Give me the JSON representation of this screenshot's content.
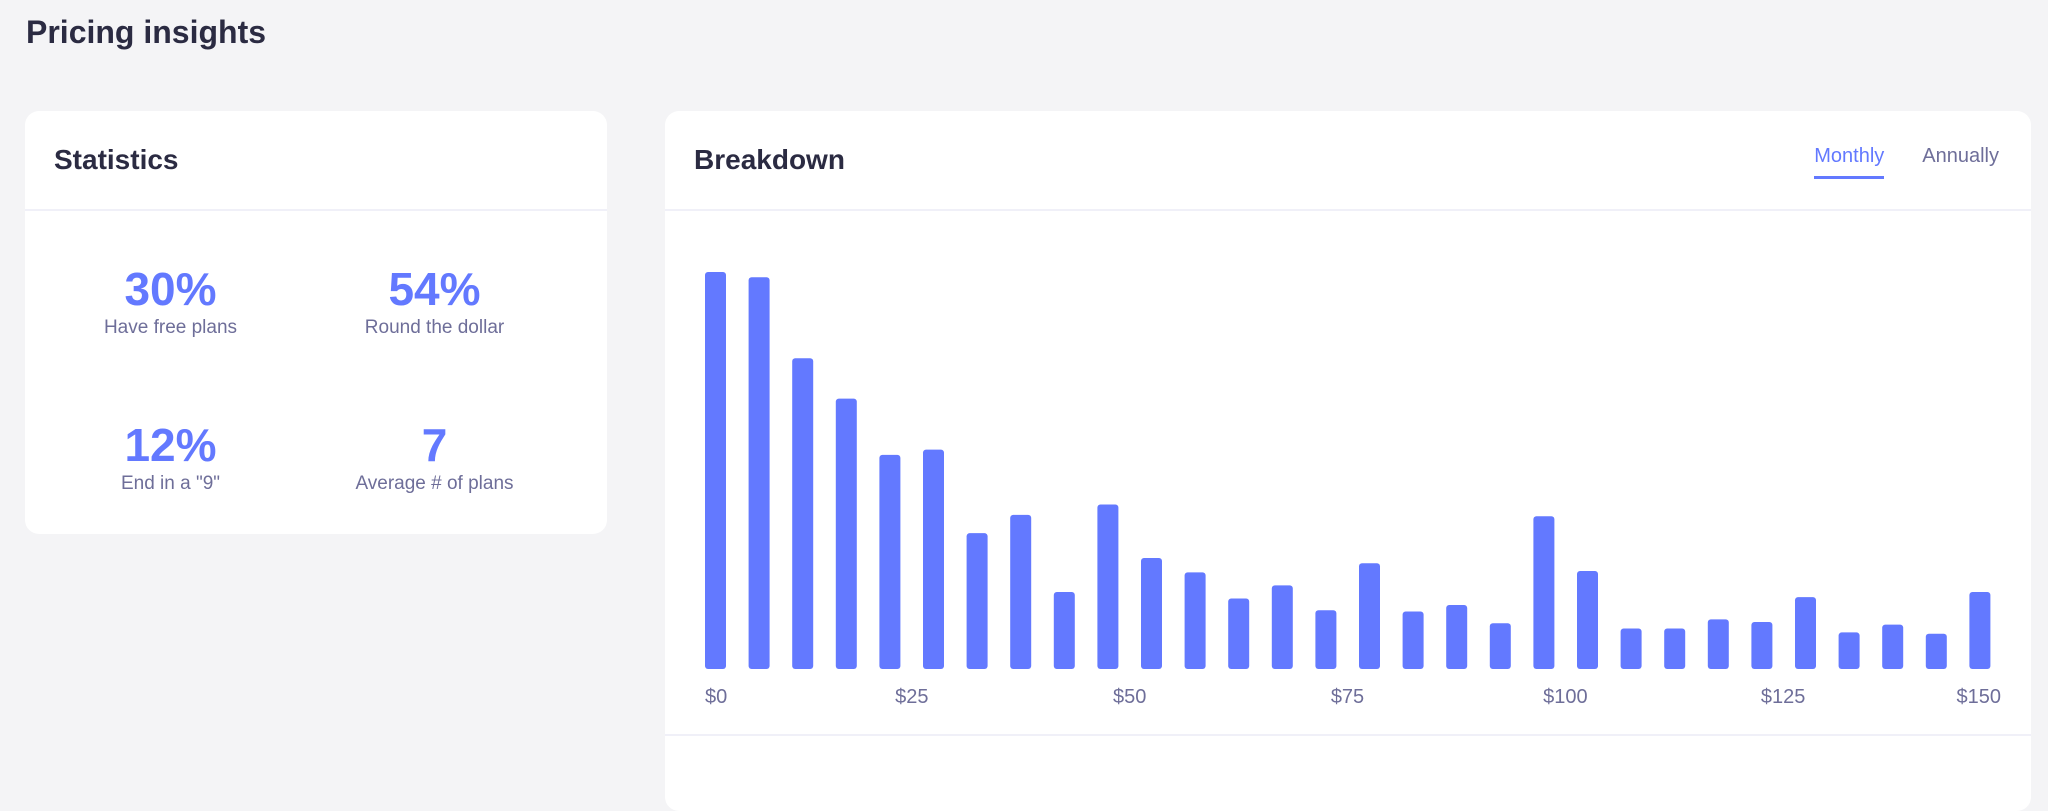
{
  "page": {
    "title": "Pricing insights"
  },
  "statistics": {
    "title": "Statistics",
    "items": [
      {
        "value": "30%",
        "label": "Have free plans"
      },
      {
        "value": "54%",
        "label": "Round the dollar"
      },
      {
        "value": "12%",
        "label": "End in a \"9\""
      },
      {
        "value": "7",
        "label": "Average # of plans"
      }
    ]
  },
  "breakdown": {
    "title": "Breakdown",
    "tabs": [
      {
        "label": "Monthly",
        "active": true
      },
      {
        "label": "Annually",
        "active": false
      }
    ]
  },
  "colors": {
    "accent": "#6379ff",
    "text": "#2b2b42",
    "muted": "#6e6e99"
  },
  "chart_data": {
    "type": "bar",
    "title": "",
    "xlabel": "",
    "ylabel": "",
    "x_range": [
      0,
      150
    ],
    "x_ticks": [
      "$0",
      "$25",
      "$50",
      "$75",
      "$100",
      "$125",
      "$150"
    ],
    "x_tick_values": [
      0,
      25,
      50,
      75,
      100,
      125,
      150
    ],
    "values": [
      304,
      300,
      238,
      207,
      164,
      168,
      104,
      118,
      59,
      126,
      85,
      74,
      54,
      64,
      45,
      81,
      44,
      49,
      35,
      117,
      75,
      31,
      31,
      38,
      36,
      55,
      28,
      34,
      27,
      59
    ],
    "ylim": [
      0,
      304
    ],
    "grid": false,
    "legend": "none",
    "color": "#6379ff"
  }
}
